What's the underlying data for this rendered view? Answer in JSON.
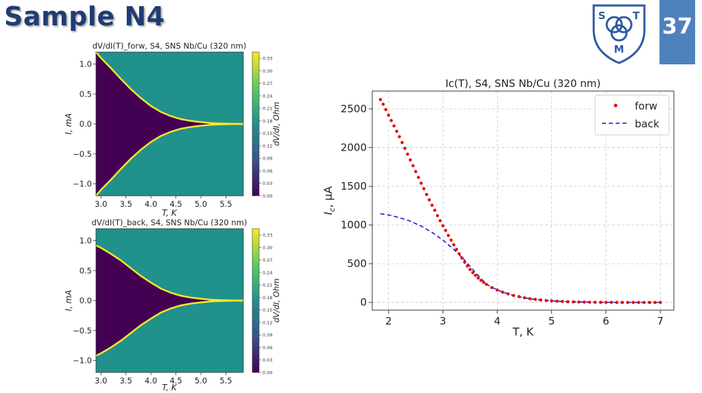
{
  "slide": {
    "title": "Sample N4",
    "page_number": "37"
  },
  "logo": {
    "letters": [
      "S",
      "T",
      "M"
    ],
    "color": "#2d5aa0"
  },
  "colors": {
    "dark": "#440154",
    "mid": "#21918c",
    "bright": "#fde725",
    "forw": "#e01010",
    "back": "#1515d0"
  },
  "chart_data": [
    {
      "type": "heatmap",
      "title": "dV/dI(T)_forw, S4, SNS Nb/Cu (320 nm)",
      "xlabel": "T, K",
      "ylabel": "I, mA",
      "colorbar_label": "dV/dI, Ohm",
      "xlim": [
        2.9,
        5.85
      ],
      "ylim": [
        -1.2,
        1.2
      ],
      "xticks": [
        "3.0",
        "3.5",
        "4.0",
        "4.5",
        "5.0",
        "5.5"
      ],
      "yticks": [
        "1.0",
        "0.5",
        "0.0",
        "−0.5",
        "−1.0"
      ],
      "cbar_ticks": [
        "0.33",
        "0.30",
        "0.27",
        "0.24",
        "0.21",
        "0.18",
        "0.15",
        "0.12",
        "0.09",
        "0.06",
        "0.03",
        "0.00"
      ],
      "cbar_range": [
        0,
        0.345
      ],
      "boundary_T": [
        2.9,
        3.0,
        3.2,
        3.4,
        3.6,
        3.8,
        4.0,
        4.2,
        4.4,
        4.6,
        4.8,
        5.0,
        5.2,
        5.4,
        5.6,
        5.85
      ],
      "boundary_Ic": [
        1.2,
        1.1,
        0.93,
        0.75,
        0.58,
        0.43,
        0.3,
        0.2,
        0.13,
        0.08,
        0.05,
        0.03,
        0.015,
        0.007,
        0.003,
        0.0
      ]
    },
    {
      "type": "heatmap",
      "title": "dV/dI(T)_back, S4, SNS Nb/Cu (320 nm)",
      "xlabel": "T, K",
      "ylabel": "I, mA",
      "colorbar_label": "dV/dI, Ohm",
      "xlim": [
        2.9,
        5.85
      ],
      "ylim": [
        -1.2,
        1.2
      ],
      "xticks": [
        "3.0",
        "3.5",
        "4.0",
        "4.5",
        "5.0",
        "5.5"
      ],
      "yticks": [
        "1.0",
        "0.5",
        "0.0",
        "−0.5",
        "−1.0"
      ],
      "cbar_ticks": [
        "0.33",
        "0.30",
        "0.27",
        "0.24",
        "0.21",
        "0.18",
        "0.15",
        "0.12",
        "0.09",
        "0.06",
        "0.03",
        "0.00"
      ],
      "cbar_range": [
        0,
        0.345
      ],
      "boundary_T": [
        2.9,
        3.0,
        3.2,
        3.4,
        3.6,
        3.8,
        4.0,
        4.2,
        4.4,
        4.6,
        4.8,
        5.0,
        5.2,
        5.4,
        5.6,
        5.85
      ],
      "boundary_Ic": [
        0.92,
        0.88,
        0.78,
        0.67,
        0.54,
        0.41,
        0.3,
        0.2,
        0.13,
        0.08,
        0.05,
        0.03,
        0.015,
        0.007,
        0.003,
        0.0
      ]
    },
    {
      "type": "scatter",
      "title": "Ic(T), S4, SNS Nb/Cu (320 nm)",
      "xlabel": "T, K",
      "ylabel": "I",
      "ylabel_sub": "c",
      "ylabel_unit": ", μA",
      "xlim": [
        1.7,
        7.25
      ],
      "ylim": [
        -100,
        2730
      ],
      "xticks": [
        "2",
        "3",
        "4",
        "5",
        "6",
        "7"
      ],
      "yticks": [
        "0",
        "500",
        "1000",
        "1500",
        "2000",
        "2500"
      ],
      "grid": true,
      "legend_position": "top-right",
      "series": [
        {
          "name": "forw",
          "style": "dots",
          "x": [
            1.85,
            1.9,
            1.95,
            2.0,
            2.05,
            2.1,
            2.15,
            2.2,
            2.25,
            2.3,
            2.35,
            2.4,
            2.45,
            2.5,
            2.55,
            2.6,
            2.65,
            2.7,
            2.75,
            2.8,
            2.85,
            2.9,
            2.95,
            3.0,
            3.05,
            3.1,
            3.15,
            3.2,
            3.25,
            3.3,
            3.35,
            3.4,
            3.45,
            3.5,
            3.55,
            3.6,
            3.65,
            3.7,
            3.75,
            3.8,
            3.9,
            4.0,
            4.1,
            4.2,
            4.3,
            4.4,
            4.5,
            4.6,
            4.7,
            4.8,
            4.9,
            5.0,
            5.1,
            5.2,
            5.3,
            5.4,
            5.5,
            5.6,
            5.7,
            5.8,
            5.9,
            6.0,
            6.1,
            6.2,
            6.3,
            6.4,
            6.5,
            6.6,
            6.7,
            6.8,
            6.9,
            7.0
          ],
          "y": [
            2620,
            2560,
            2490,
            2420,
            2350,
            2280,
            2210,
            2140,
            2065,
            1990,
            1915,
            1840,
            1765,
            1690,
            1615,
            1540,
            1470,
            1395,
            1325,
            1255,
            1190,
            1120,
            1055,
            990,
            930,
            865,
            805,
            745,
            685,
            630,
            575,
            520,
            470,
            425,
            385,
            348,
            315,
            285,
            258,
            233,
            192,
            160,
            132,
            110,
            90,
            74,
            60,
            48,
            39,
            31,
            25,
            20,
            16,
            12,
            9,
            7,
            5,
            4,
            3,
            2,
            1,
            1,
            1,
            0,
            0,
            0,
            0,
            0,
            0,
            0,
            0,
            0
          ]
        },
        {
          "name": "back",
          "style": "dashed",
          "x": [
            1.85,
            2.0,
            2.2,
            2.4,
            2.6,
            2.8,
            3.0,
            3.2,
            3.4,
            3.6,
            3.8,
            4.0,
            4.2,
            4.4,
            4.6,
            4.8,
            5.0,
            5.2,
            5.4,
            5.6,
            5.8,
            6.0,
            6.5,
            7.0
          ],
          "y": [
            1145,
            1130,
            1095,
            1050,
            985,
            905,
            805,
            685,
            545,
            385,
            235,
            160,
            110,
            74,
            48,
            31,
            20,
            12,
            7,
            4,
            2,
            1,
            0,
            0
          ]
        }
      ]
    }
  ]
}
